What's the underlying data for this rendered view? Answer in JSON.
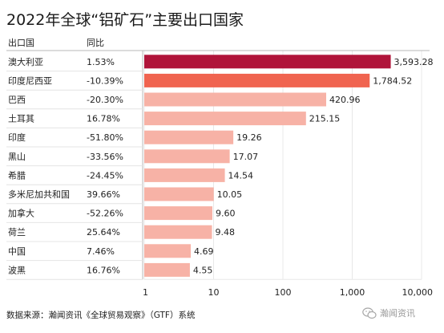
{
  "title": "2022年全球“铝矿石”主要出口国家",
  "source": "数据来源：瀚闻资讯《全球贸易观察》（GTF）系统",
  "watermark": "瀚闻资讯",
  "colors": {
    "top": "#b0143a",
    "second": "#f06450",
    "rest": "#f7b2a6",
    "row_line": "#e4e4e4",
    "header_line": "#b8b8b8",
    "grid": "#e8e8e8"
  },
  "chart_data": {
    "type": "bar",
    "orientation": "horizontal",
    "scale": "log",
    "column_headers": [
      "出口国",
      "同比"
    ],
    "categories": [
      "澳大利亚",
      "印度尼西亚",
      "巴西",
      "土耳其",
      "印度",
      "黑山",
      "希腊",
      "多米尼加共和国",
      "加拿大",
      "荷兰",
      "中国",
      "波黑"
    ],
    "yoy": [
      "1.53%",
      "-10.39%",
      "-20.30%",
      "16.78%",
      "-51.80%",
      "-33.56%",
      "-24.45%",
      "39.66%",
      "-52.26%",
      "25.64%",
      "7.46%",
      "16.76%"
    ],
    "values": [
      3593.28,
      1784.52,
      420.96,
      215.15,
      19.26,
      17.07,
      14.54,
      10.05,
      9.6,
      9.48,
      4.69,
      4.55
    ],
    "value_labels": [
      "3,593.28",
      "1,784.52",
      "420.96",
      "215.15",
      "19.26",
      "17.07",
      "14.54",
      "10.05",
      "9.60",
      "9.48",
      "4.69",
      "4.55"
    ],
    "xlim": [
      1,
      10000
    ],
    "xticks": [
      1,
      10,
      100,
      1000,
      10000
    ],
    "xtick_labels": [
      "1",
      "10",
      "100",
      "1,000",
      "10,000"
    ]
  }
}
